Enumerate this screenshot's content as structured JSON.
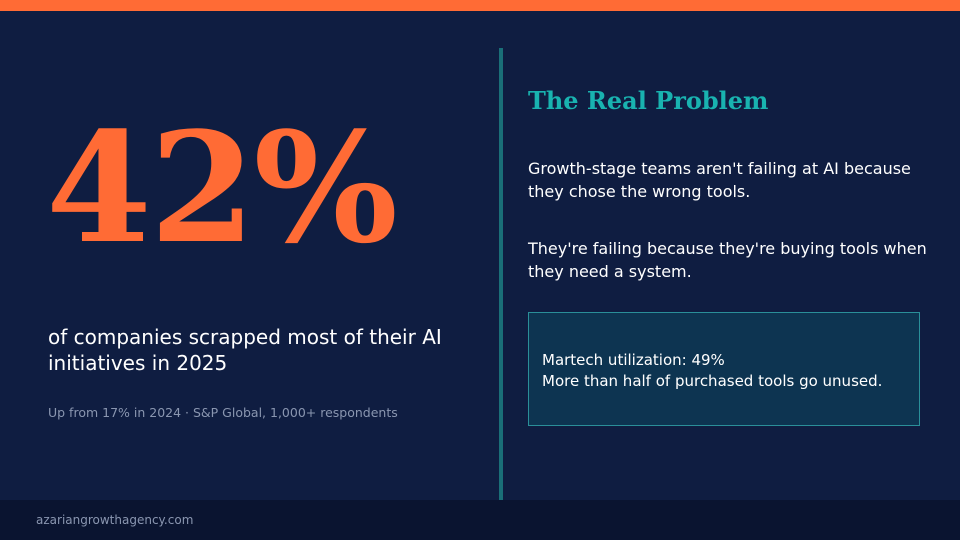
{
  "colors": {
    "accent": "#ff6b35",
    "teal": "#19b3b0",
    "background": "#0f1d41",
    "footer": "#0a1430"
  },
  "stat": {
    "value": "42%",
    "caption": "of companies scrapped most of their AI initiatives in 2025",
    "source": "Up from 17% in 2024  ·  S&P Global, 1,000+ respondents"
  },
  "problem": {
    "heading": "The Real Problem",
    "paragraph_1": "Growth-stage teams aren't failing at AI because they chose the wrong tools.",
    "paragraph_2": "They're failing because they're buying tools when they need a system."
  },
  "callout": {
    "line_1": "Martech utilization: 49%",
    "line_2": "More than half of purchased tools go unused."
  },
  "footer": {
    "website": "azariangrowthagency.com"
  }
}
